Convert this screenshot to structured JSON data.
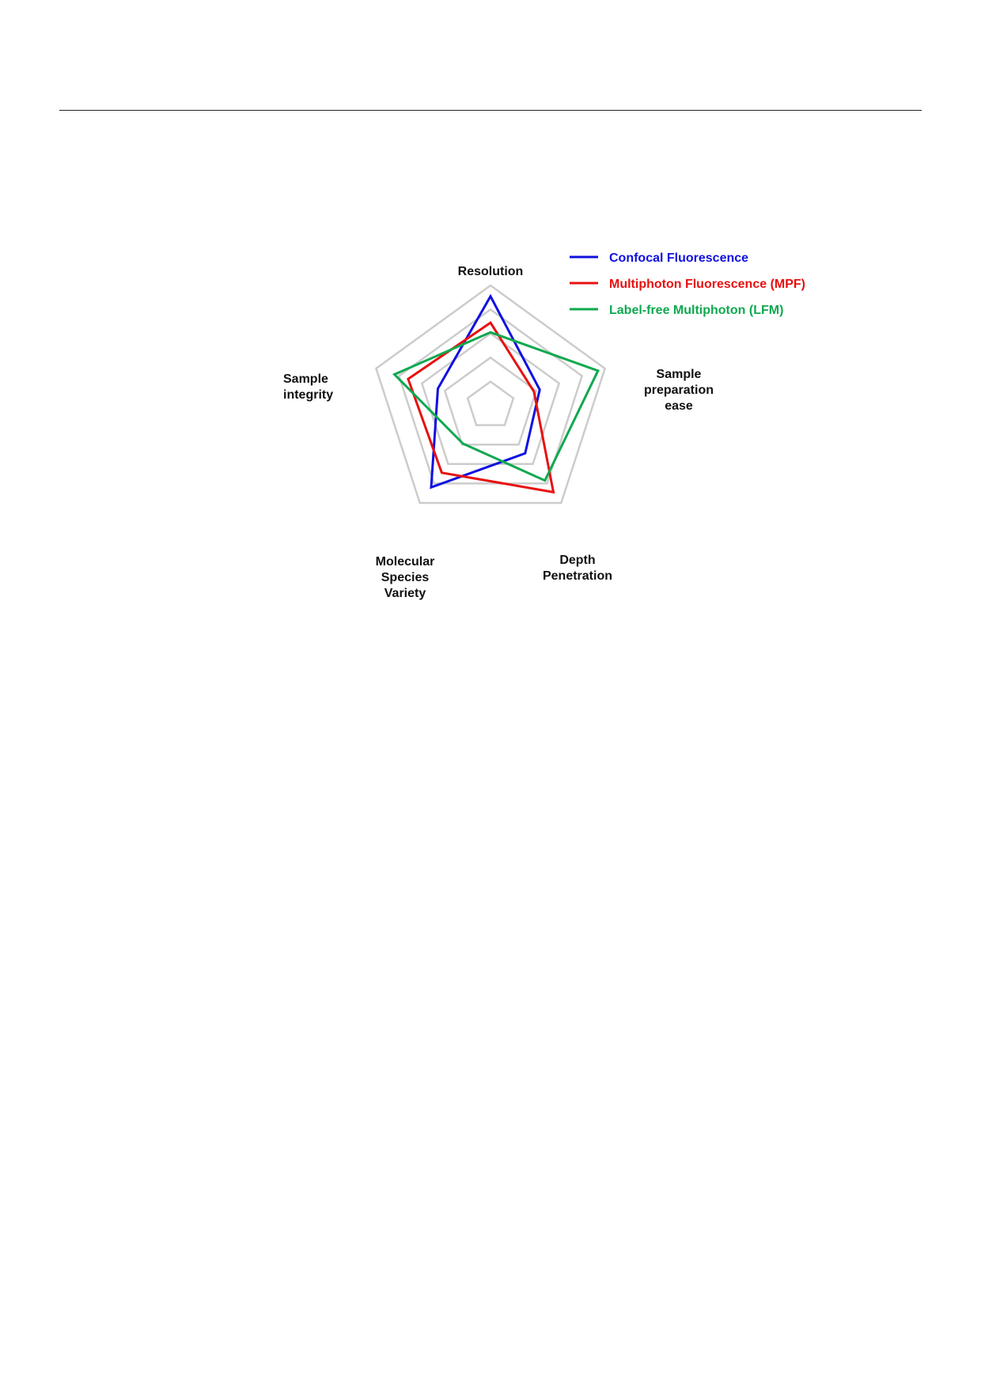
{
  "chart_data": {
    "type": "radar",
    "title": "",
    "axes": [
      {
        "lines": [
          "Resolution"
        ]
      },
      {
        "lines": [
          "Sample",
          "preparation",
          "ease"
        ]
      },
      {
        "lines": [
          "Depth",
          "Penetration"
        ]
      },
      {
        "lines": [
          "Molecular",
          "Species",
          "Variety"
        ]
      },
      {
        "lines": [
          "Sample",
          "integrity"
        ]
      }
    ],
    "range": [
      0,
      5
    ],
    "grid_levels": [
      1,
      2,
      3,
      4,
      5
    ],
    "grid_color": "#cccccc",
    "legend_position": "top-right",
    "series": [
      {
        "name": "Confocal Fluorescence",
        "color": "#1010e0",
        "values": [
          4.55,
          2.15,
          2.45,
          4.2,
          2.3
        ]
      },
      {
        "name": "Multiphoton Fluorescence (MPF)",
        "color": "#e81010",
        "values": [
          3.45,
          1.9,
          4.45,
          3.45,
          3.6
        ]
      },
      {
        "name": "Label-free Multiphoton (LFM)",
        "color": "#10a850",
        "values": [
          3.05,
          4.7,
          3.85,
          1.95,
          4.2
        ]
      }
    ]
  }
}
